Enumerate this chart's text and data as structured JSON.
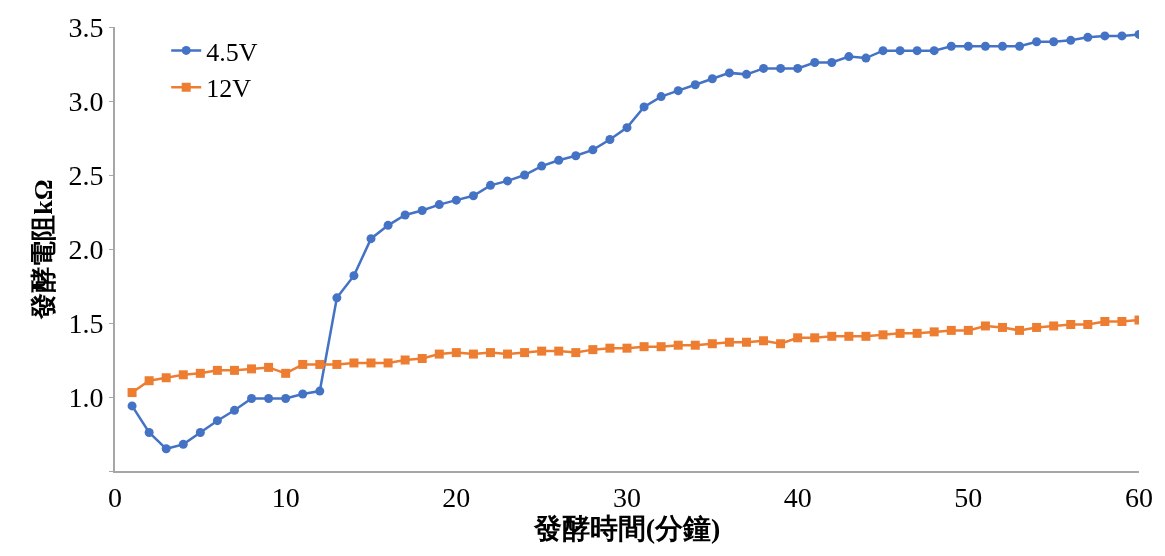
{
  "chart_data": {
    "type": "line",
    "xlabel": "發酵時間(分鐘)",
    "ylabel": "發酵電阻kΩ",
    "x": [
      1,
      2,
      3,
      4,
      5,
      6,
      7,
      8,
      9,
      10,
      11,
      12,
      13,
      14,
      15,
      16,
      17,
      18,
      19,
      20,
      21,
      22,
      23,
      24,
      25,
      26,
      27,
      28,
      29,
      30,
      31,
      32,
      33,
      34,
      35,
      36,
      37,
      38,
      39,
      40,
      41,
      42,
      43,
      44,
      45,
      46,
      47,
      48,
      49,
      50,
      51,
      52,
      53,
      54,
      55,
      56,
      57,
      58,
      59,
      60
    ],
    "series": [
      {
        "name": "4.5V",
        "color": "#4472c4",
        "marker": "circle",
        "values": [
          0.94,
          0.76,
          0.65,
          0.68,
          0.76,
          0.84,
          0.91,
          0.99,
          0.99,
          0.99,
          1.02,
          1.04,
          1.67,
          1.82,
          2.07,
          2.16,
          2.23,
          2.26,
          2.3,
          2.33,
          2.36,
          2.43,
          2.46,
          2.5,
          2.56,
          2.6,
          2.63,
          2.67,
          2.74,
          2.82,
          2.96,
          3.03,
          3.07,
          3.11,
          3.15,
          3.19,
          3.18,
          3.22,
          3.22,
          3.22,
          3.26,
          3.26,
          3.3,
          3.29,
          3.34,
          3.34,
          3.34,
          3.34,
          3.37,
          3.37,
          3.37,
          3.37,
          3.37,
          3.4,
          3.4,
          3.41,
          3.43,
          3.44,
          3.44,
          3.45
        ]
      },
      {
        "name": "12V",
        "color": "#ed7d31",
        "marker": "square",
        "values": [
          1.03,
          1.11,
          1.13,
          1.15,
          1.16,
          1.18,
          1.18,
          1.19,
          1.2,
          1.16,
          1.22,
          1.22,
          1.22,
          1.23,
          1.23,
          1.23,
          1.25,
          1.26,
          1.29,
          1.3,
          1.29,
          1.3,
          1.29,
          1.3,
          1.31,
          1.31,
          1.3,
          1.32,
          1.33,
          1.33,
          1.34,
          1.34,
          1.35,
          1.35,
          1.36,
          1.37,
          1.37,
          1.38,
          1.36,
          1.4,
          1.4,
          1.41,
          1.41,
          1.41,
          1.42,
          1.43,
          1.43,
          1.44,
          1.45,
          1.45,
          1.48,
          1.47,
          1.45,
          1.47,
          1.48,
          1.49,
          1.49,
          1.51,
          1.51,
          1.52
        ]
      }
    ],
    "xlim": [
      0,
      60
    ],
    "xticks": [
      0,
      10,
      20,
      30,
      40,
      50,
      60
    ],
    "ylim": [
      0.5,
      3.5
    ],
    "yticks": [
      {
        "value": 0.5,
        "label": null
      },
      {
        "value": 1.0,
        "label": "1.0"
      },
      {
        "value": 1.5,
        "label": "1.5"
      },
      {
        "value": 2.0,
        "label": "2.0"
      },
      {
        "value": 2.5,
        "label": "2.5"
      },
      {
        "value": 3.0,
        "label": "3.0"
      },
      {
        "value": 3.5,
        "label": "3.5"
      }
    ],
    "legend": "top left",
    "line_style": "solid"
  }
}
